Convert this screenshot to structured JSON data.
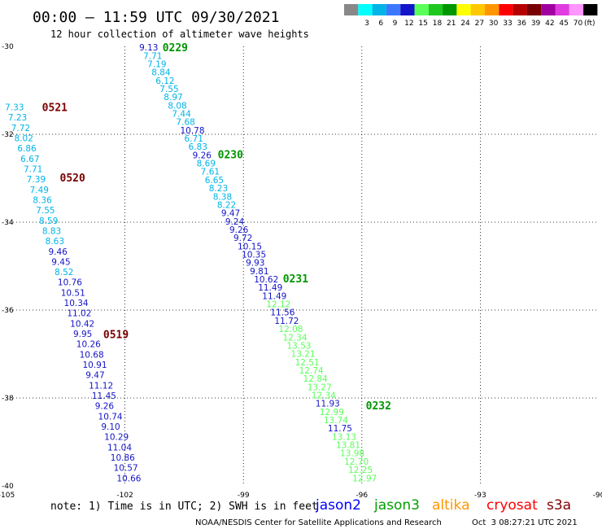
{
  "header": {
    "title": "00:00 – 11:59 UTC 09/30/2021",
    "subtitle": "12 hour collection of altimeter wave heights"
  },
  "legend": {
    "unit": "(ft)",
    "bins": [
      {
        "color": "#888888",
        "label": ""
      },
      {
        "color": "#00ffff",
        "label": "3"
      },
      {
        "color": "#00b4e6",
        "label": "6"
      },
      {
        "color": "#3c78ff",
        "label": "9"
      },
      {
        "color": "#1414c8",
        "label": "12"
      },
      {
        "color": "#5aff5a",
        "label": "15"
      },
      {
        "color": "#1ec81e",
        "label": "18"
      },
      {
        "color": "#009600",
        "label": "21"
      },
      {
        "color": "#ffff00",
        "label": "24"
      },
      {
        "color": "#ffc800",
        "label": "27"
      },
      {
        "color": "#ff9600",
        "label": "30"
      },
      {
        "color": "#ff0000",
        "label": "33"
      },
      {
        "color": "#b40000",
        "label": "36"
      },
      {
        "color": "#780000",
        "label": "39"
      },
      {
        "color": "#a000a0",
        "label": "42"
      },
      {
        "color": "#e03ce0",
        "label": "45"
      },
      {
        "color": "#ff96ff",
        "label": "70"
      },
      {
        "color": "#000000",
        "label": ""
      }
    ]
  },
  "footer": {
    "note": "note: 1) Time is in UTC; 2) SWH is in feet",
    "satellites": [
      {
        "name": "jason2",
        "color": "#0000ff"
      },
      {
        "name": "jason3",
        "color": "#00a000"
      },
      {
        "name": "altika",
        "color": "#ff9600"
      },
      {
        "name": "cryosat",
        "color": "#ff0000"
      },
      {
        "name": "s3a",
        "color": "#800000"
      }
    ],
    "credit": "NOAA/NESDIS Center for Satellite Applications and Research",
    "timestamp": "Oct  3 08:27:21 UTC 2021"
  },
  "chart_data": {
    "type": "scatter",
    "xlim": [
      -105,
      -90
    ],
    "ylim": [
      -40,
      -30
    ],
    "x_ticks": [
      "-105",
      "-102",
      "-99",
      "-96",
      "-93",
      "-90"
    ],
    "x_tick_values": [
      -105,
      -102,
      -99,
      -96,
      -93,
      -90
    ],
    "y_ticks": [
      "-30",
      "-32",
      "-34",
      "-36",
      "-38",
      "-40"
    ],
    "y_tick_values": [
      -30,
      -32,
      -34,
      -36,
      -38,
      -40
    ],
    "grid": true,
    "pass_labels": [
      {
        "text": "0229",
        "lon": -101.05,
        "lat": -30.02,
        "color": "#009600"
      },
      {
        "text": "0230",
        "lon": -99.65,
        "lat": -32.45,
        "color": "#009600"
      },
      {
        "text": "0231",
        "lon": -98.0,
        "lat": -35.28,
        "color": "#009600"
      },
      {
        "text": "0232",
        "lon": -95.9,
        "lat": -38.17,
        "color": "#009600"
      },
      {
        "text": "0521",
        "lon": -104.1,
        "lat": -31.38,
        "color": "#780000"
      },
      {
        "text": "0520",
        "lon": -103.65,
        "lat": -32.98,
        "color": "#780000"
      },
      {
        "text": "0519",
        "lon": -102.55,
        "lat": -36.55,
        "color": "#780000"
      }
    ],
    "series": [
      {
        "name": "0229",
        "start": [
          -101.64,
          -30.02
        ],
        "end": [
          -96.24,
          -39.82
        ],
        "values": [
          "9.13",
          "7.71",
          "7.19",
          "8.84",
          "6.12",
          "7.55",
          "8.97",
          "8.08",
          "7.44",
          "7.68",
          "10.78",
          "6.71",
          "6.83",
          "9.26",
          "8.69",
          "7.61",
          "6.65",
          "8.23",
          "8.38",
          "8.22",
          "9.47",
          "9.24",
          "9.26",
          "9.72",
          "10.15",
          "10.35",
          "9.93",
          "9.81",
          "10.62",
          "11.49",
          "11.49",
          "12.12",
          "11.56",
          "11.72",
          "12.08",
          "12.34",
          "13.53",
          "13.21",
          "12.51",
          "12.74",
          "12.84",
          "13.27",
          "12.34",
          "11.93",
          "12.99",
          "13.74",
          "11.75",
          "13.13",
          "13.81",
          "13.98",
          "12.70",
          "12.25",
          "12.97"
        ]
      },
      {
        "name": "0521",
        "start": [
          -105.04,
          -31.38
        ],
        "end": [
          -102.21,
          -39.82
        ],
        "values": [
          "7.33",
          "7.23",
          "7.72",
          "8.02",
          "6.86",
          "6.67",
          "7.71",
          "7.39",
          "7.49",
          "8.36",
          "7.55",
          "8.59",
          "8.83",
          "8.63",
          "9.46",
          "9.45",
          "8.52",
          "10.76",
          "10.51",
          "10.34",
          "11.02",
          "10.42",
          "9.95",
          "10.26",
          "10.68",
          "10.91",
          "9.47",
          "11.12",
          "11.45",
          "9.26",
          "10.74",
          "9.10",
          "10.29",
          "11.04",
          "10.86",
          "10.57",
          "10.66"
        ]
      }
    ]
  }
}
